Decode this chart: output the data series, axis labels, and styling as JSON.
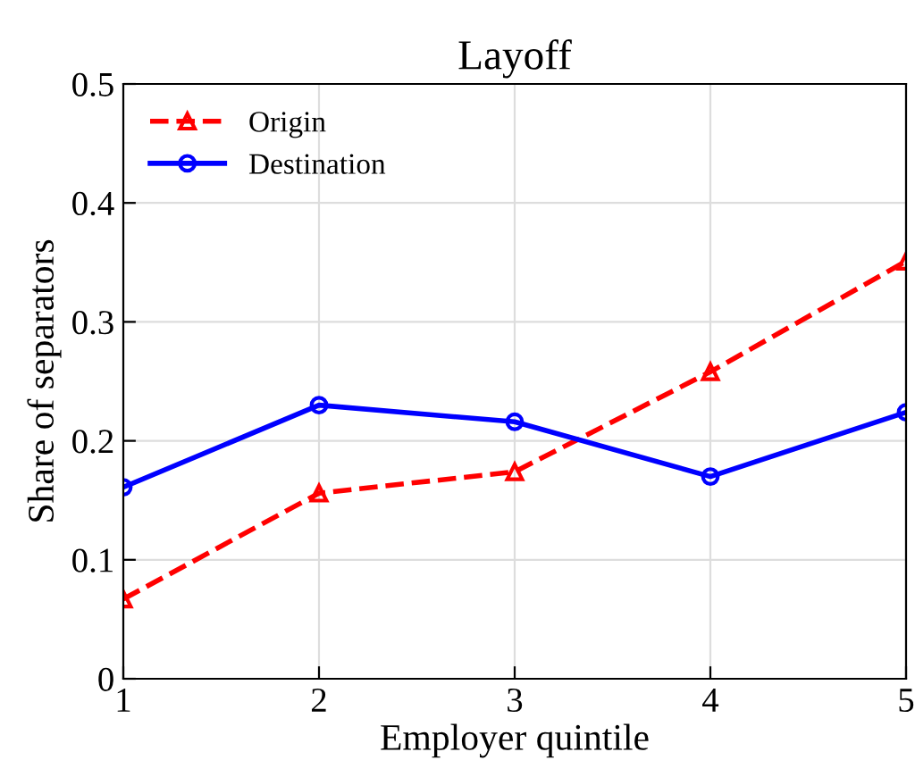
{
  "chart_data": {
    "type": "line",
    "title": "Layoff",
    "xlabel": "Employer quintile",
    "ylabel": "Share of separators",
    "x": [
      1,
      2,
      3,
      4,
      5
    ],
    "series": [
      {
        "name": "Origin",
        "color": "#ff0000",
        "values": [
          0.067,
          0.156,
          0.174,
          0.258,
          0.351
        ],
        "marker": "triangle",
        "line_style": "dashed"
      },
      {
        "name": "Destination",
        "color": "#0000ff",
        "values": [
          0.161,
          0.23,
          0.216,
          0.17,
          0.224
        ],
        "marker": "circle",
        "line_style": "solid"
      }
    ],
    "xlim": [
      1,
      5
    ],
    "xticks": [
      1,
      2,
      3,
      4,
      5
    ],
    "ylim": [
      0,
      0.5
    ],
    "yticks": [
      0,
      0.1,
      0.2,
      0.3,
      0.4,
      0.5
    ],
    "grid": true,
    "legend": "top left"
  }
}
